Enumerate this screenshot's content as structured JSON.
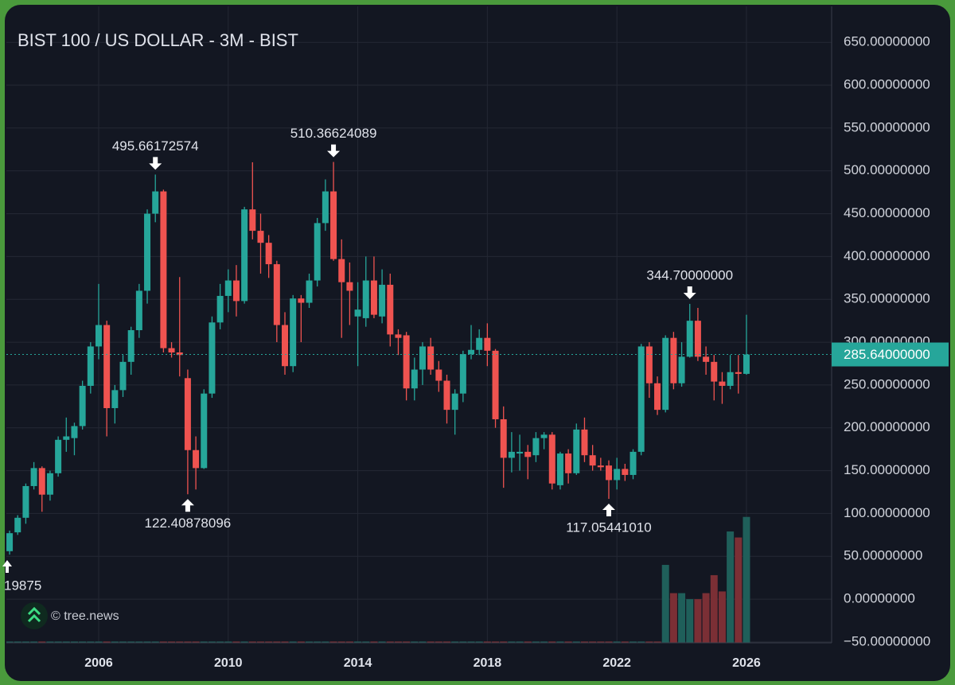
{
  "chart_data": {
    "type": "candlestick",
    "title": "BIST 100 / US DOLLAR - 3M - BIST",
    "watermark": "© tree.news",
    "edge_label": "19875",
    "up_color": "#26a69a",
    "down_color": "#ef5350",
    "volume_up_color": "#1f5f5a",
    "volume_down_color": "#7b2f35",
    "grid": true,
    "xlim": [
      2003.15,
      2028.63
    ],
    "xticks": [
      2006,
      2010,
      2014,
      2018,
      2022,
      2026
    ],
    "ylim": [
      -51,
      692
    ],
    "yticks": [
      {
        "value": -50,
        "label": "−50.00000000"
      },
      {
        "value": 0,
        "label": "0.00000000"
      },
      {
        "value": 50,
        "label": "50.00000000"
      },
      {
        "value": 100,
        "label": "100.00000000"
      },
      {
        "value": 150,
        "label": "150.00000000"
      },
      {
        "value": 200,
        "label": "200.00000000"
      },
      {
        "value": 250,
        "label": "250.00000000"
      },
      {
        "value": 300,
        "label": "300.00000000"
      },
      {
        "value": 350,
        "label": "350.00000000"
      },
      {
        "value": 400,
        "label": "400.00000000"
      },
      {
        "value": 450,
        "label": "450.00000000"
      },
      {
        "value": 500,
        "label": "500.00000000"
      },
      {
        "value": 550,
        "label": "550.00000000"
      },
      {
        "value": 600,
        "label": "600.00000000"
      },
      {
        "value": 650,
        "label": "650.00000000"
      }
    ],
    "x": [
      2003.25,
      2003.5,
      2003.75,
      2004,
      2004.25,
      2004.5,
      2004.75,
      2005,
      2005.25,
      2005.5,
      2005.75,
      2006,
      2006.25,
      2006.5,
      2006.75,
      2007,
      2007.25,
      2007.5,
      2007.75,
      2008,
      2008.25,
      2008.5,
      2008.75,
      2009,
      2009.25,
      2009.5,
      2009.75,
      2010,
      2010.25,
      2010.5,
      2010.75,
      2011,
      2011.25,
      2011.5,
      2011.75,
      2012,
      2012.25,
      2012.5,
      2012.75,
      2013,
      2013.25,
      2013.5,
      2013.75,
      2014,
      2014.25,
      2014.5,
      2014.75,
      2015,
      2015.25,
      2015.5,
      2015.75,
      2016,
      2016.25,
      2016.5,
      2016.75,
      2017,
      2017.25,
      2017.5,
      2017.75,
      2018,
      2018.25,
      2018.5,
      2018.75,
      2019,
      2019.25,
      2019.5,
      2019.75,
      2020,
      2020.25,
      2020.5,
      2020.75,
      2021,
      2021.25,
      2021.5,
      2021.75,
      2022,
      2022.25,
      2022.5,
      2022.75,
      2023,
      2023.25,
      2023.5,
      2023.75,
      2024,
      2024.25,
      2024.5,
      2024.75,
      2025,
      2025.25,
      2025.5,
      2025.75,
      2026
    ],
    "open": [
      56,
      78,
      95,
      132,
      153,
      122,
      147,
      186,
      188,
      202,
      249,
      295,
      320,
      223,
      244,
      277,
      314,
      360,
      450,
      476,
      293,
      288,
      258,
      174,
      153,
      240,
      323,
      354,
      372,
      348,
      455,
      430,
      416,
      391,
      320,
      272,
      351,
      346,
      372,
      439,
      476,
      397,
      370,
      330,
      328,
      372,
      330,
      367,
      309,
      308,
      246,
      268,
      295,
      268,
      255,
      221,
      240,
      286,
      291,
      305,
      290,
      210,
      165,
      170,
      172,
      168,
      188,
      192,
      133,
      170,
      147,
      198,
      168,
      156,
      156,
      139,
      152,
      145,
      172,
      295,
      252,
      221,
      305,
      252,
      283,
      325,
      283,
      277,
      254,
      249,
      265,
      263
    ],
    "high": [
      80,
      98,
      135,
      160,
      155,
      150,
      190,
      212,
      206,
      255,
      300,
      368,
      325,
      250,
      285,
      318,
      368,
      455,
      495.66172574,
      478,
      300,
      376,
      268,
      190,
      245,
      330,
      368,
      385,
      390,
      458,
      510,
      450,
      425,
      395,
      335,
      355,
      355,
      380,
      445,
      490,
      510.36624089,
      420,
      393,
      370,
      400,
      400,
      385,
      380,
      315,
      312,
      282,
      300,
      305,
      278,
      262,
      245,
      290,
      320,
      315,
      322,
      292,
      225,
      195,
      192,
      180,
      195,
      195,
      195,
      172,
      175,
      205,
      212,
      180,
      165,
      162,
      165,
      158,
      175,
      298,
      300,
      260,
      308,
      312,
      300,
      344.7,
      340,
      295,
      285,
      265,
      285,
      285,
      332
    ],
    "low": [
      52,
      75,
      88,
      128,
      102,
      115,
      143,
      172,
      168,
      198,
      240,
      280,
      190,
      205,
      236,
      262,
      305,
      345,
      440,
      288,
      282,
      260,
      122.40878096,
      128,
      152,
      235,
      315,
      335,
      330,
      345,
      420,
      380,
      375,
      300,
      262,
      265,
      300,
      340,
      365,
      430,
      395,
      305,
      320,
      272,
      318,
      328,
      322,
      295,
      285,
      232,
      232,
      250,
      262,
      242,
      205,
      192,
      230,
      280,
      285,
      272,
      200,
      130,
      148,
      150,
      140,
      160,
      175,
      128,
      128,
      135,
      145,
      160,
      150,
      150,
      117.0544101,
      128,
      138,
      140,
      168,
      235,
      215,
      218,
      245,
      248,
      282,
      278,
      262,
      232,
      228,
      245,
      240,
      262
    ],
    "close": [
      77,
      95,
      132,
      153,
      122,
      147,
      186,
      190,
      202,
      249,
      295,
      320,
      223,
      244,
      277,
      314,
      360,
      450,
      476,
      293,
      288,
      285,
      174,
      153,
      240,
      323,
      354,
      372,
      348,
      455,
      430,
      416,
      391,
      320,
      272,
      351,
      346,
      372,
      439,
      476,
      397,
      370,
      360,
      338,
      372,
      332,
      367,
      309,
      305,
      246,
      268,
      295,
      268,
      255,
      221,
      240,
      286,
      291,
      305,
      290,
      210,
      165,
      172,
      172,
      166,
      188,
      192,
      135,
      170,
      147,
      198,
      168,
      156,
      154,
      139,
      152,
      145,
      172,
      295,
      252,
      221,
      305,
      252,
      283,
      325,
      283,
      277,
      254,
      249,
      265,
      263,
      285.64
    ],
    "volume": [
      -49.5,
      -49.5,
      -49.5,
      -49.5,
      -49.5,
      -49.5,
      -49.5,
      -49.5,
      -49.5,
      -49.5,
      -49.5,
      -49.5,
      -49.5,
      -49.5,
      -49.5,
      -49.5,
      -49.5,
      -49.5,
      -49.5,
      -49.5,
      -49.5,
      -49.5,
      -49.5,
      -49.5,
      -49.5,
      -49.5,
      -49.5,
      -49.5,
      -49.5,
      -49.5,
      -49.5,
      -49.5,
      -49.5,
      -49.5,
      -49.5,
      -49.5,
      -49.5,
      -49.5,
      -49.5,
      -49.5,
      -49.5,
      -49.5,
      -49.5,
      -49.5,
      -49.5,
      -49.5,
      -49.5,
      -49.5,
      -49.5,
      -49.5,
      -49.5,
      -49.5,
      -49.5,
      -49.5,
      -49.5,
      -49.5,
      -49.5,
      -49.5,
      -49.5,
      -49.5,
      -49.5,
      -49.5,
      -49.5,
      -49.5,
      -49.5,
      -49.5,
      -49.5,
      -49.5,
      -49.5,
      -49.5,
      -49.5,
      -49.5,
      -49.5,
      -49.5,
      -49.5,
      -49.5,
      -49.5,
      -49.5,
      -49.5,
      -49.5,
      -49.5,
      40,
      7,
      7,
      0,
      0,
      7,
      28,
      9,
      79,
      72,
      96
    ],
    "last_price": {
      "value": 285.64,
      "label": "285.64000000"
    },
    "annotations": [
      {
        "x": 2007.75,
        "value": 495.66172574,
        "label": "495.66172574",
        "position": "above"
      },
      {
        "x": 2008.75,
        "value": 122.40878096,
        "label": "122.40878096",
        "position": "below"
      },
      {
        "x": 2013.25,
        "value": 510.36624089,
        "label": "510.36624089",
        "position": "above"
      },
      {
        "x": 2024.25,
        "value": 344.7,
        "label": "344.70000000",
        "position": "above"
      },
      {
        "x": 2021.75,
        "value": 117.0544101,
        "label": "117.05441010",
        "position": "below"
      }
    ]
  }
}
